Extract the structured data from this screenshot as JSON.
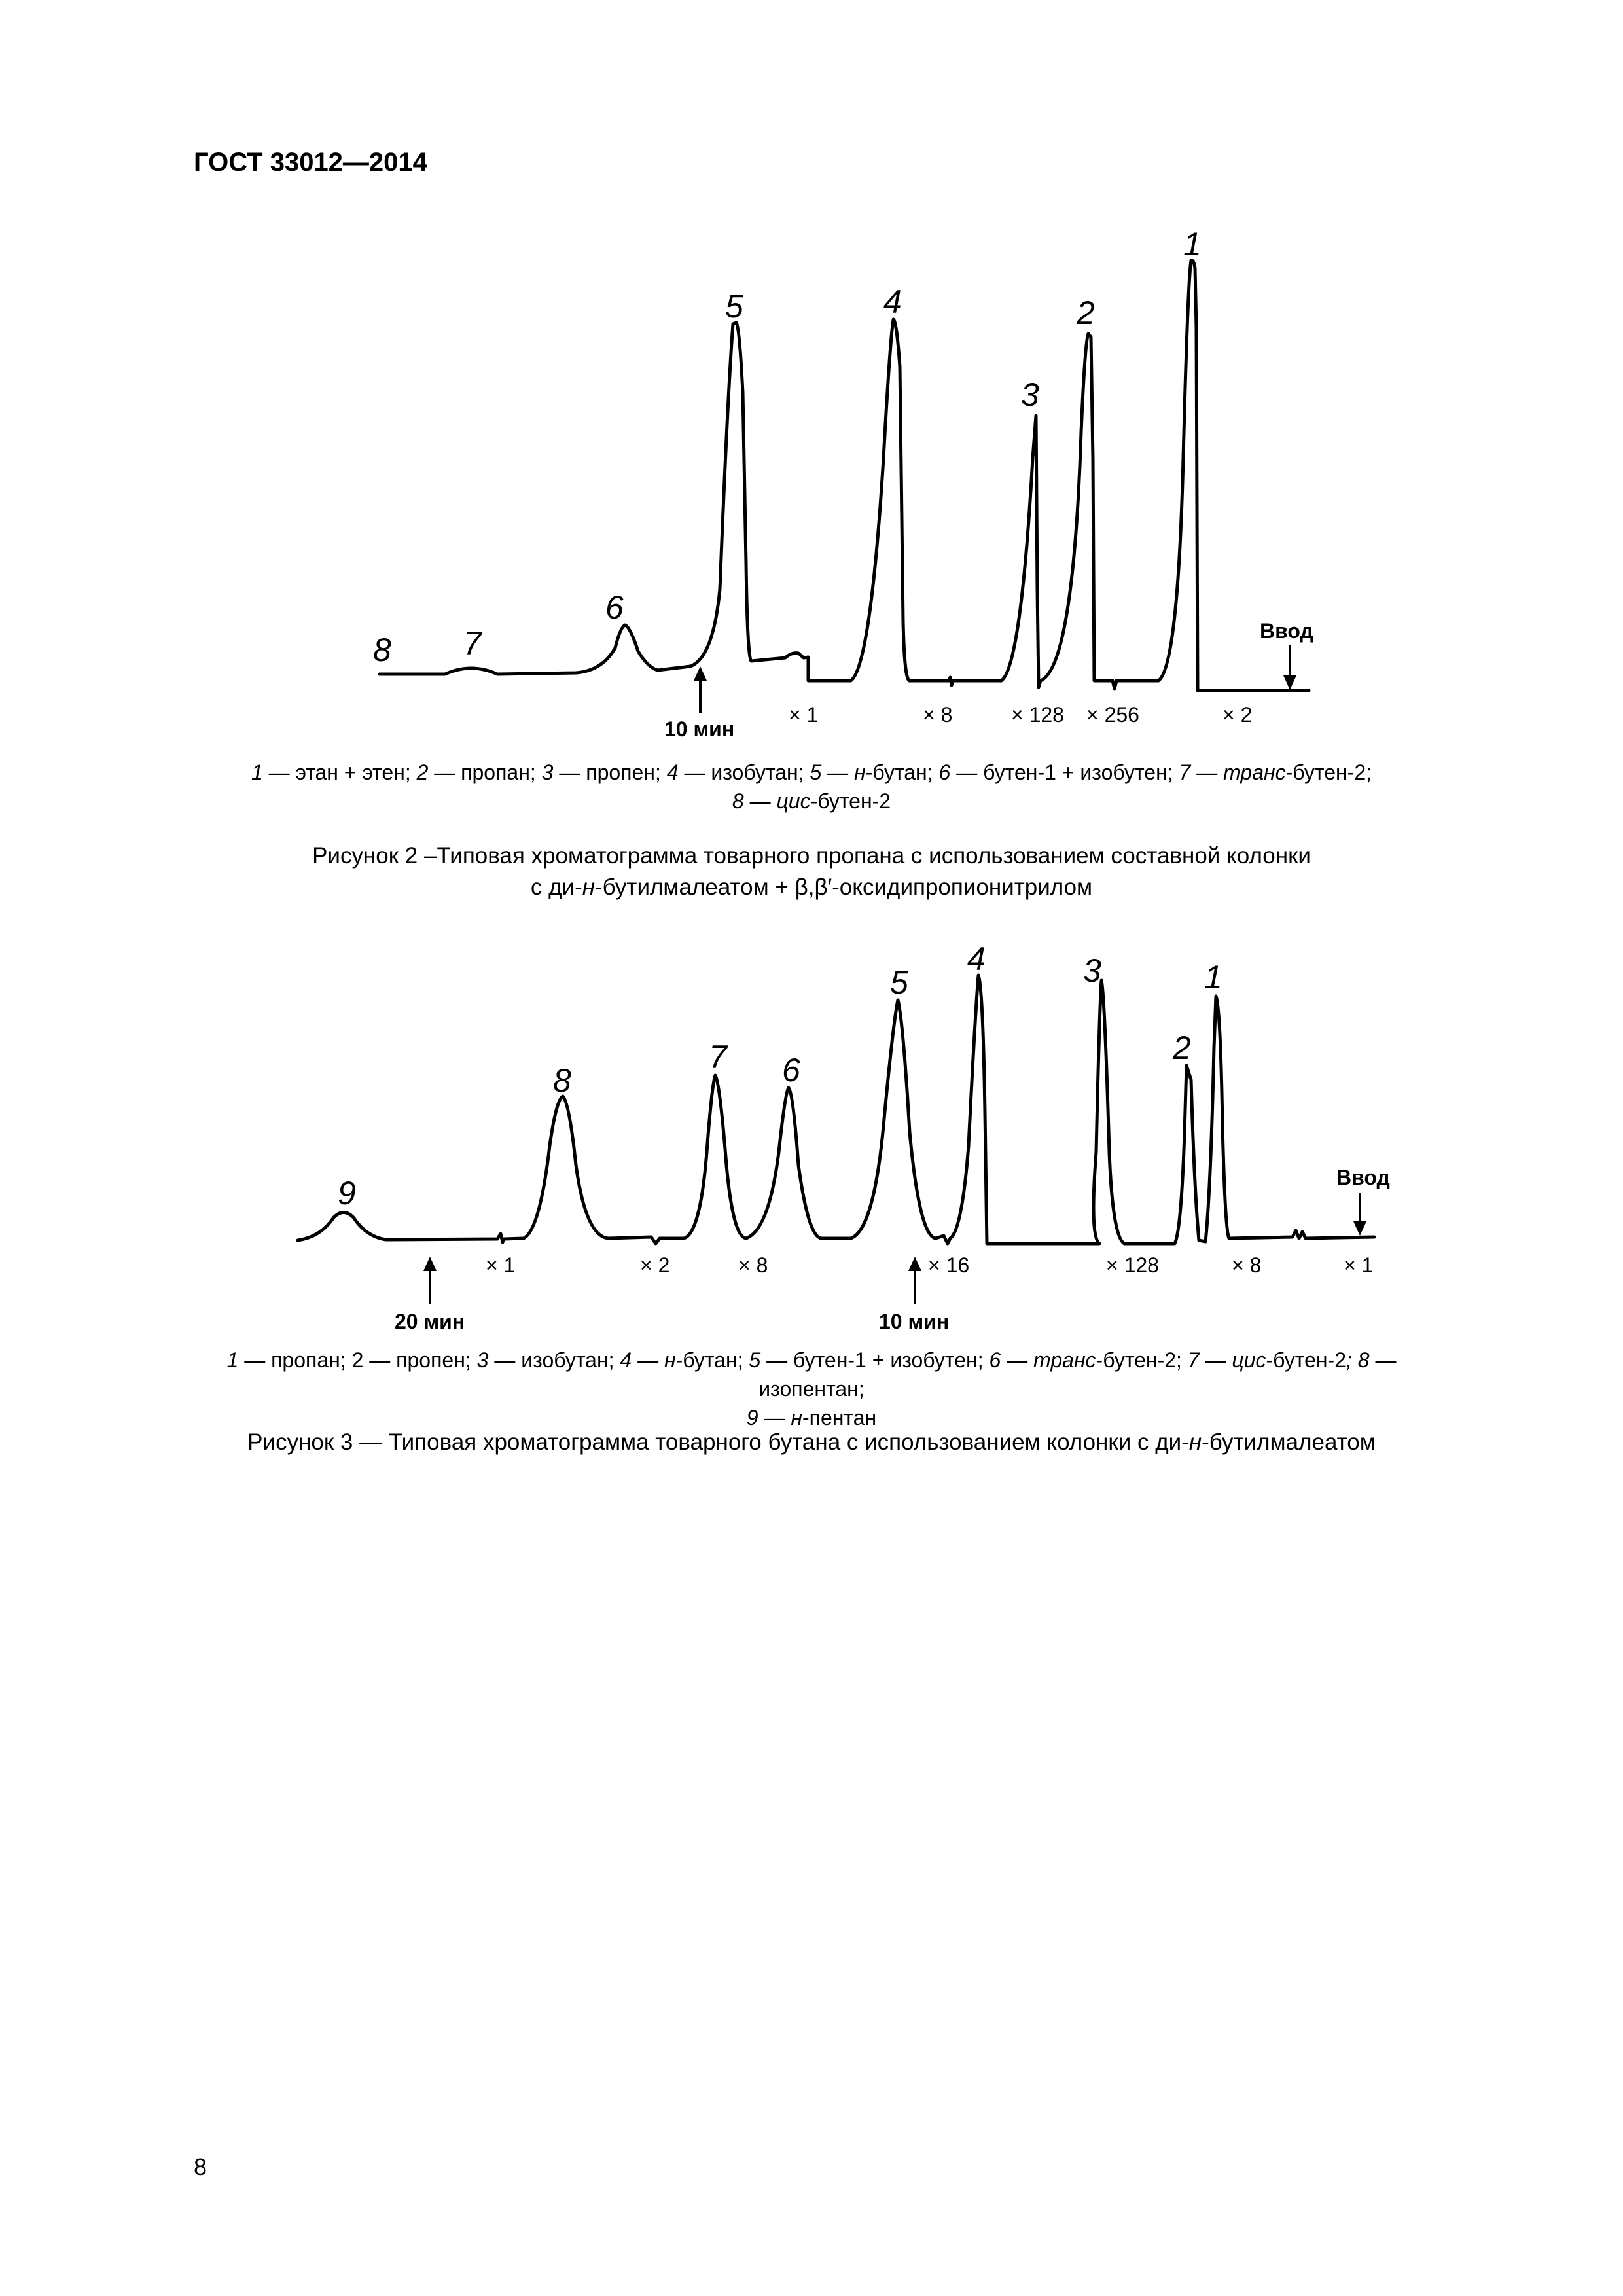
{
  "header": {
    "standard": "ГОСТ 33012—2014"
  },
  "figure2": {
    "peaks": [
      "1",
      "2",
      "3",
      "4",
      "5",
      "6",
      "7",
      "8"
    ],
    "time_mark": "10 мин",
    "injection": "Ввод",
    "attenuations": [
      "× 1",
      "× 8",
      "× 128",
      "× 256",
      "× 2"
    ],
    "legend_line1": [
      {
        "n": "1",
        "t": " — этан + этен; "
      },
      {
        "n": "2",
        "t": " — пропан; "
      },
      {
        "n": "3",
        "t": " — пропен; "
      },
      {
        "n": "4",
        "t": " — изобутан; "
      },
      {
        "n": "5",
        "t": " — "
      },
      {
        "i": "н",
        "t": "-бутан; "
      },
      {
        "n": "6",
        "t": " — бутен-1 + изобутен; "
      },
      {
        "n": "7",
        "t": " — "
      },
      {
        "i": "транс",
        "t": "-бутен-2;"
      }
    ],
    "legend_line2": [
      {
        "n": "8",
        "t": " — "
      },
      {
        "i": "цис",
        "t": "-бутен-2"
      }
    ],
    "caption_line1": "Рисунок 2 –Типовая хроматограмма товарного пропана с использованием составной колонки",
    "caption_line2_a": "с ди-",
    "caption_line2_i": "н",
    "caption_line2_b": "-бутилмалеатом +  β,β′-оксидипропионитрилом"
  },
  "figure3": {
    "peaks": [
      "1",
      "2",
      "3",
      "4",
      "5",
      "6",
      "7",
      "8",
      "9"
    ],
    "time_marks": [
      "20 мин",
      "10 мин"
    ],
    "injection": "Ввод",
    "attenuations": [
      "× 1",
      "× 2",
      "× 8",
      "× 16",
      "× 128",
      "× 8",
      "× 1"
    ],
    "legend_line1": [
      {
        "n": "1",
        "t": " — пропан; 2 — пропен; "
      },
      {
        "n": "3",
        "t": " — изобутан; "
      },
      {
        "n": "4",
        "t": " — "
      },
      {
        "i": "н",
        "t": "-бутан; "
      },
      {
        "n": "5",
        "t": " — бутен-1 + изобутен; "
      },
      {
        "n": "6",
        "t": " — "
      },
      {
        "i": "транс",
        "t": "-бутен-2; "
      },
      {
        "n": "7",
        "t": " — "
      },
      {
        "i": "цис",
        "t": "-бутен-2"
      },
      {
        "i": "; 8",
        "t": " — изопентан;"
      }
    ],
    "legend_line2": [
      {
        "n": "9",
        "t": " — "
      },
      {
        "i": "н",
        "t": "-пентан"
      }
    ],
    "caption_a": "Рисунок 3 — Типовая хроматограмма товарного бутана с использованием колонки с ди-",
    "caption_i": "н",
    "caption_b": "-бутилмалеатом"
  },
  "page_number": "8"
}
